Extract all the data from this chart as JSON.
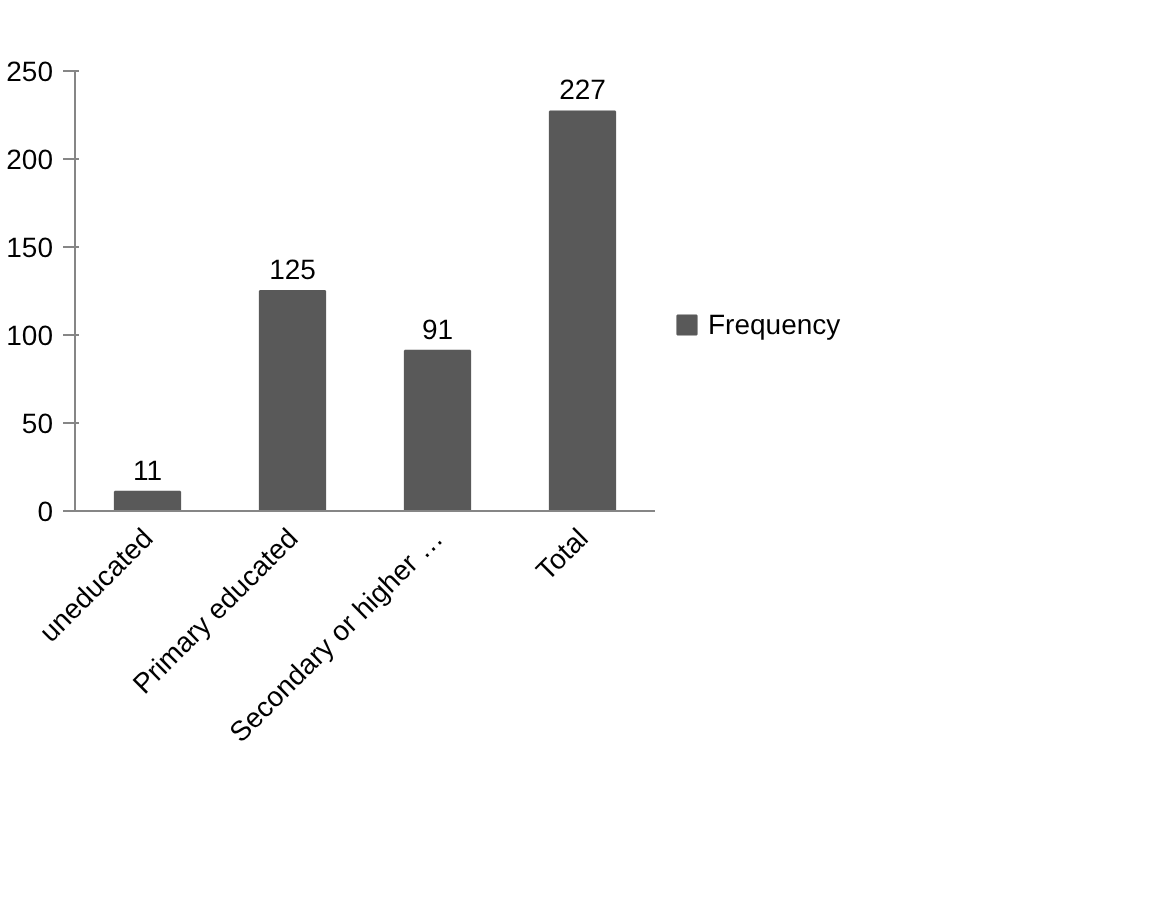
{
  "chart_data": {
    "type": "bar",
    "categories": [
      "uneducated",
      "Primary educated",
      "Secondary or higher …",
      "Total"
    ],
    "series": [
      {
        "name": "Frequency",
        "color": "#595959",
        "values": [
          11,
          125,
          91,
          227
        ]
      }
    ],
    "ylim": [
      0,
      250
    ],
    "yticks": [
      0,
      50,
      100,
      150,
      200,
      250
    ],
    "grid": false,
    "legend": "right",
    "data_labels": true
  }
}
